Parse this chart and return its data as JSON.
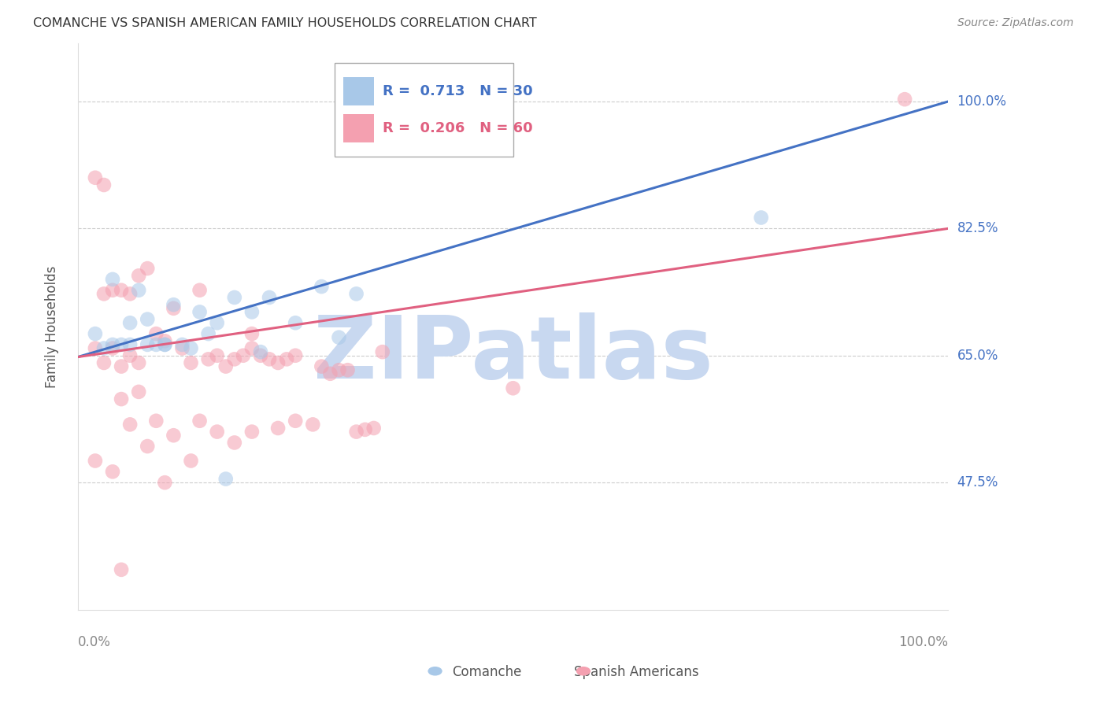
{
  "title": "COMANCHE VS SPANISH AMERICAN FAMILY HOUSEHOLDS CORRELATION CHART",
  "source": "Source: ZipAtlas.com",
  "ylabel": "Family Households",
  "yticks": [
    0.475,
    0.65,
    0.825,
    1.0
  ],
  "ytick_labels": [
    "47.5%",
    "65.0%",
    "82.5%",
    "100.0%"
  ],
  "xlim": [
    0.0,
    1.0
  ],
  "ylim": [
    0.3,
    1.08
  ],
  "blue_color": "#a8c8e8",
  "pink_color": "#f4a0b0",
  "blue_line_color": "#4472c4",
  "pink_line_color": "#e06080",
  "legend_R_blue": "R =  0.713",
  "legend_N_blue": "N = 30",
  "legend_R_pink": "R =  0.206",
  "legend_N_pink": "N = 60",
  "watermark": "ZIPatlas",
  "watermark_color": "#c8d8f0",
  "background_color": "#ffffff",
  "blue_line_x0": 0.0,
  "blue_line_y0": 0.648,
  "blue_line_x1": 1.0,
  "blue_line_y1": 1.0,
  "pink_line_x0": 0.0,
  "pink_line_y0": 0.648,
  "pink_line_x1": 1.0,
  "pink_line_y1": 0.825,
  "blue_x": [
    0.37,
    0.785,
    0.04,
    0.07,
    0.02,
    0.06,
    0.08,
    0.03,
    0.05,
    0.11,
    0.14,
    0.18,
    0.22,
    0.16,
    0.28,
    0.32,
    0.1,
    0.12,
    0.15,
    0.2,
    0.25,
    0.13,
    0.17,
    0.21,
    0.3,
    0.04,
    0.06,
    0.08,
    0.1,
    0.09
  ],
  "blue_y": [
    1.005,
    0.84,
    0.755,
    0.74,
    0.68,
    0.695,
    0.7,
    0.66,
    0.665,
    0.72,
    0.71,
    0.73,
    0.73,
    0.695,
    0.745,
    0.735,
    0.665,
    0.665,
    0.68,
    0.71,
    0.695,
    0.66,
    0.48,
    0.655,
    0.675,
    0.665,
    0.665,
    0.665,
    0.665,
    0.665
  ],
  "pink_x": [
    0.02,
    0.03,
    0.04,
    0.05,
    0.06,
    0.07,
    0.08,
    0.09,
    0.1,
    0.11,
    0.12,
    0.13,
    0.14,
    0.15,
    0.16,
    0.17,
    0.18,
    0.19,
    0.2,
    0.21,
    0.22,
    0.23,
    0.24,
    0.25,
    0.28,
    0.29,
    0.3,
    0.31,
    0.34,
    0.35,
    0.02,
    0.04,
    0.06,
    0.08,
    0.1,
    0.13,
    0.05,
    0.07,
    0.09,
    0.11,
    0.03,
    0.05,
    0.07,
    0.02,
    0.04,
    0.06,
    0.14,
    0.16,
    0.18,
    0.2,
    0.23,
    0.25,
    0.27,
    0.03,
    0.05,
    0.2,
    0.32,
    0.33,
    0.5,
    0.95
  ],
  "pink_y": [
    0.895,
    0.735,
    0.74,
    0.74,
    0.735,
    0.76,
    0.77,
    0.68,
    0.67,
    0.715,
    0.66,
    0.64,
    0.74,
    0.645,
    0.65,
    0.635,
    0.645,
    0.65,
    0.66,
    0.65,
    0.645,
    0.64,
    0.645,
    0.65,
    0.635,
    0.625,
    0.63,
    0.63,
    0.55,
    0.655,
    0.505,
    0.49,
    0.555,
    0.525,
    0.475,
    0.505,
    0.59,
    0.6,
    0.56,
    0.54,
    0.64,
    0.635,
    0.64,
    0.66,
    0.66,
    0.65,
    0.56,
    0.545,
    0.53,
    0.545,
    0.55,
    0.56,
    0.555,
    0.885,
    0.355,
    0.68,
    0.545,
    0.548,
    0.605,
    1.003
  ]
}
